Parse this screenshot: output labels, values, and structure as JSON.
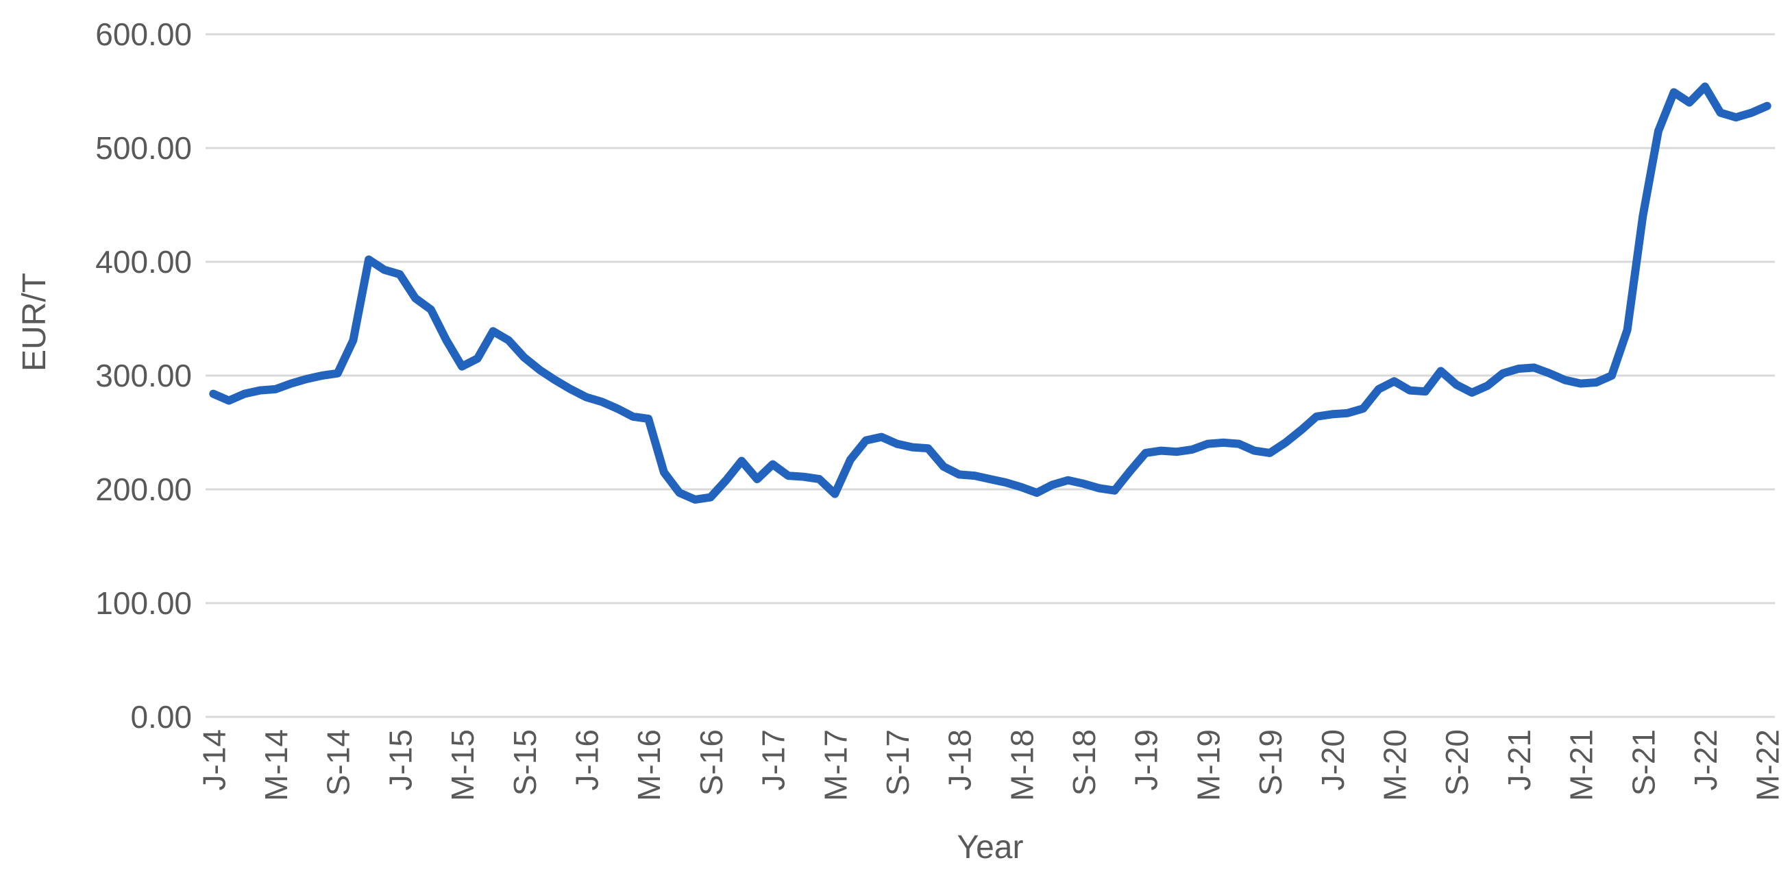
{
  "chart_data": {
    "type": "line",
    "title": "",
    "xlabel": "Year",
    "ylabel": "EUR/T",
    "ylim": [
      0,
      600
    ],
    "grid": "horizontal",
    "legend": "none",
    "y_ticks": [
      0,
      100,
      200,
      300,
      400,
      500,
      600
    ],
    "y_tick_labels": [
      "0.00",
      "100.00",
      "200.00",
      "300.00",
      "400.00",
      "500.00",
      "600.00"
    ],
    "x_tick_labels": [
      "J-14",
      "M-14",
      "S-14",
      "J-15",
      "M-15",
      "S-15",
      "J-16",
      "M-16",
      "S-16",
      "J-17",
      "M-17",
      "S-17",
      "J-18",
      "M-18",
      "S-18",
      "J-19",
      "M-19",
      "S-19",
      "J-20",
      "M-20",
      "S-20",
      "J-21",
      "M-21",
      "S-21",
      "J-22",
      "M-22"
    ],
    "x_tick_interval": 4,
    "series": [
      {
        "name": "EUR/T",
        "color": "#2263be",
        "values": [
          284,
          278,
          284,
          287,
          288,
          293,
          297,
          300,
          302,
          331,
          402,
          393,
          389,
          368,
          358,
          331,
          308,
          315,
          339,
          331,
          316,
          305,
          296,
          288,
          281,
          277,
          271,
          264,
          262,
          215,
          197,
          191,
          193,
          208,
          225,
          209,
          222,
          212,
          211,
          209,
          196,
          226,
          243,
          246,
          240,
          237,
          236,
          220,
          213,
          212,
          209,
          206,
          202,
          197,
          204,
          208,
          205,
          201,
          199,
          216,
          232,
          234,
          233,
          235,
          240,
          241,
          240,
          234,
          232,
          241,
          252,
          264,
          266,
          267,
          271,
          288,
          295,
          287,
          286,
          304,
          292,
          285,
          291,
          302,
          306,
          307,
          302,
          296,
          293,
          294,
          300,
          340,
          440,
          515,
          549,
          540,
          554,
          531,
          527,
          531,
          537
        ]
      }
    ]
  },
  "colors": {
    "background": "#ffffff",
    "gridline": "#d9d9d9",
    "text": "#595959",
    "line": "#2263be"
  }
}
